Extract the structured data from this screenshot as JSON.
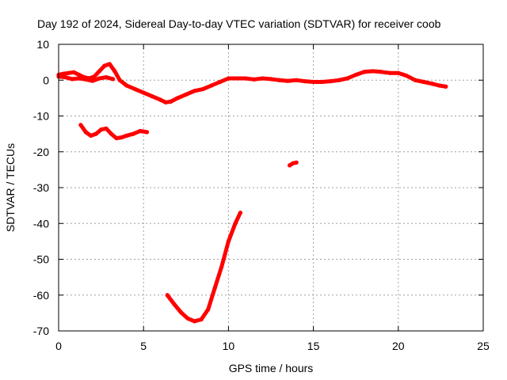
{
  "chart_data": {
    "type": "scatter",
    "title": "Day 192 of 2024, Sidereal Day-to-day VTEC variation (SDTVAR) for receiver coob",
    "xlabel": "GPS time / hours",
    "ylabel": "SDTVAR / TECUs",
    "xlim": [
      0,
      25
    ],
    "ylim": [
      -70,
      10
    ],
    "xticks": [
      0,
      5,
      10,
      15,
      20,
      25
    ],
    "yticks": [
      -70,
      -60,
      -50,
      -40,
      -30,
      -20,
      -10,
      0,
      10
    ],
    "xtick_labels": [
      "0",
      "5",
      "10",
      "15",
      "20",
      "25"
    ],
    "ytick_labels": [
      "-70",
      "-60",
      "-50",
      "-40",
      "-30",
      "-20",
      "-10",
      "0",
      "10"
    ],
    "grid": true,
    "color": "#ff0000",
    "series": [
      {
        "name": "main-track",
        "x": [
          0,
          0.3,
          0.6,
          0.9,
          1.2,
          1.5,
          1.8,
          2.1,
          2.4,
          2.7,
          3.0,
          3.3,
          3.6,
          4.0,
          4.5,
          5.0,
          5.5,
          6.0,
          6.3,
          6.6,
          7.0,
          7.5,
          8.0,
          8.5,
          9.0,
          9.5,
          10.0,
          10.5,
          11.0,
          11.5,
          12.0,
          12.5,
          13.0,
          13.5,
          14.0,
          14.5,
          15.0,
          15.5,
          16.0,
          16.5,
          17.0,
          17.5,
          18.0,
          18.5,
          19.0,
          19.5,
          20.0,
          20.5,
          21.0,
          21.5,
          22.0,
          22.4,
          22.8
        ],
        "y": [
          1.5,
          1.8,
          2.0,
          2.2,
          1.5,
          0.8,
          0.5,
          1.0,
          2.5,
          4.0,
          4.5,
          2.5,
          0,
          -1.5,
          -2.5,
          -3.5,
          -4.5,
          -5.5,
          -6.2,
          -6.0,
          -5.0,
          -4.0,
          -3.0,
          -2.5,
          -1.5,
          -0.5,
          0.5,
          0.5,
          0.5,
          0.2,
          0.5,
          0.3,
          0,
          -0.2,
          0,
          -0.3,
          -0.5,
          -0.5,
          -0.3,
          0,
          0.5,
          1.5,
          2.3,
          2.5,
          2.3,
          2.0,
          2.0,
          1.2,
          0,
          -0.5,
          -1.0,
          -1.5,
          -1.8
        ]
      },
      {
        "name": "lower-branch",
        "x": [
          0,
          0.4,
          0.8,
          1.2,
          1.6,
          2.0,
          2.4,
          2.8,
          3.2
        ],
        "y": [
          1.0,
          0.8,
          0.3,
          0.5,
          0.2,
          -0.2,
          0.5,
          0.8,
          0.3
        ]
      },
      {
        "name": "short-arc-a",
        "x": [
          1.3,
          1.6,
          1.9,
          2.2,
          2.5,
          2.8,
          3.1,
          3.4,
          3.7,
          4.0,
          4.4,
          4.8,
          5.2
        ],
        "y": [
          -12.5,
          -14.5,
          -15.5,
          -15.0,
          -13.8,
          -13.5,
          -15.0,
          -16.2,
          -16.0,
          -15.5,
          -15.0,
          -14.2,
          -14.5
        ]
      },
      {
        "name": "short-arc-b",
        "x": [
          13.6,
          13.8,
          14.0
        ],
        "y": [
          -23.8,
          -23.2,
          -23.0
        ]
      },
      {
        "name": "deep-arc",
        "x": [
          6.4,
          6.8,
          7.2,
          7.6,
          8.0,
          8.4,
          8.8,
          9.2,
          9.6,
          10.0,
          10.4,
          10.7
        ],
        "y": [
          -60.0,
          -62.5,
          -64.8,
          -66.5,
          -67.3,
          -66.8,
          -64.0,
          -58.0,
          -52.0,
          -45.0,
          -40.0,
          -37.0
        ]
      }
    ]
  }
}
